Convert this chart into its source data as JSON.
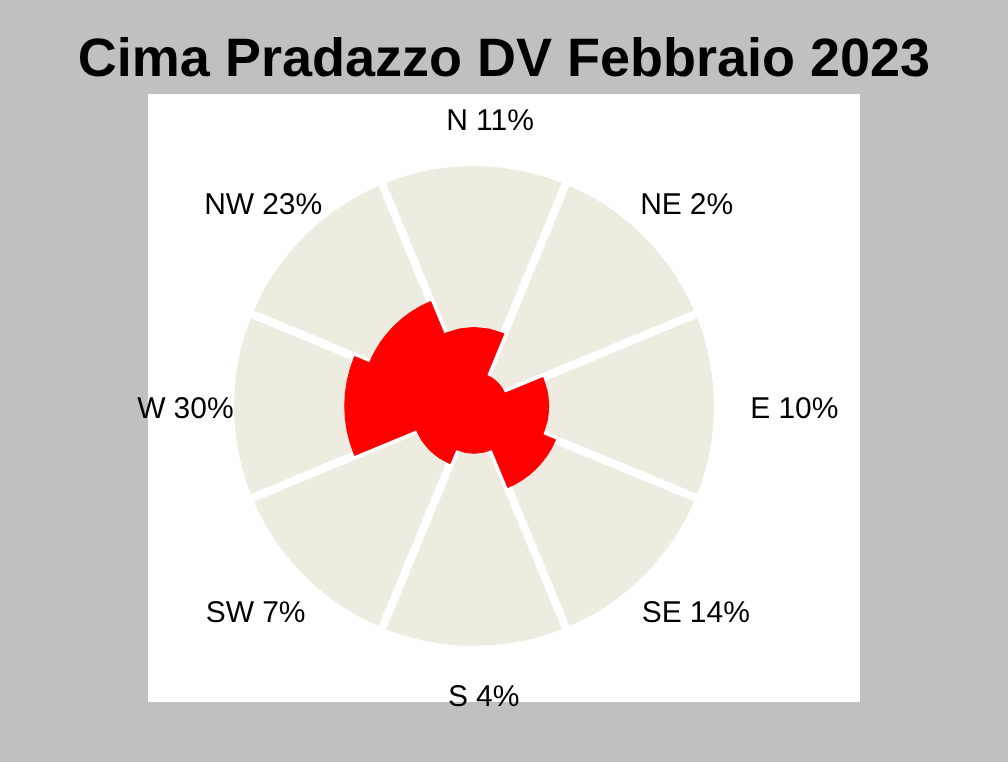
{
  "chart_data": {
    "type": "other",
    "title": "Cima Pradazzo DV Febbraio 2023",
    "categories": [
      "N",
      "NE",
      "E",
      "SE",
      "S",
      "SW",
      "W",
      "NW"
    ],
    "values": [
      11,
      2,
      10,
      14,
      4,
      7,
      30,
      23
    ],
    "value_labels": [
      "11%",
      "2%",
      "10%",
      "14%",
      "4%",
      "7%",
      "30%",
      "23%"
    ],
    "color": "#ff0000"
  }
}
